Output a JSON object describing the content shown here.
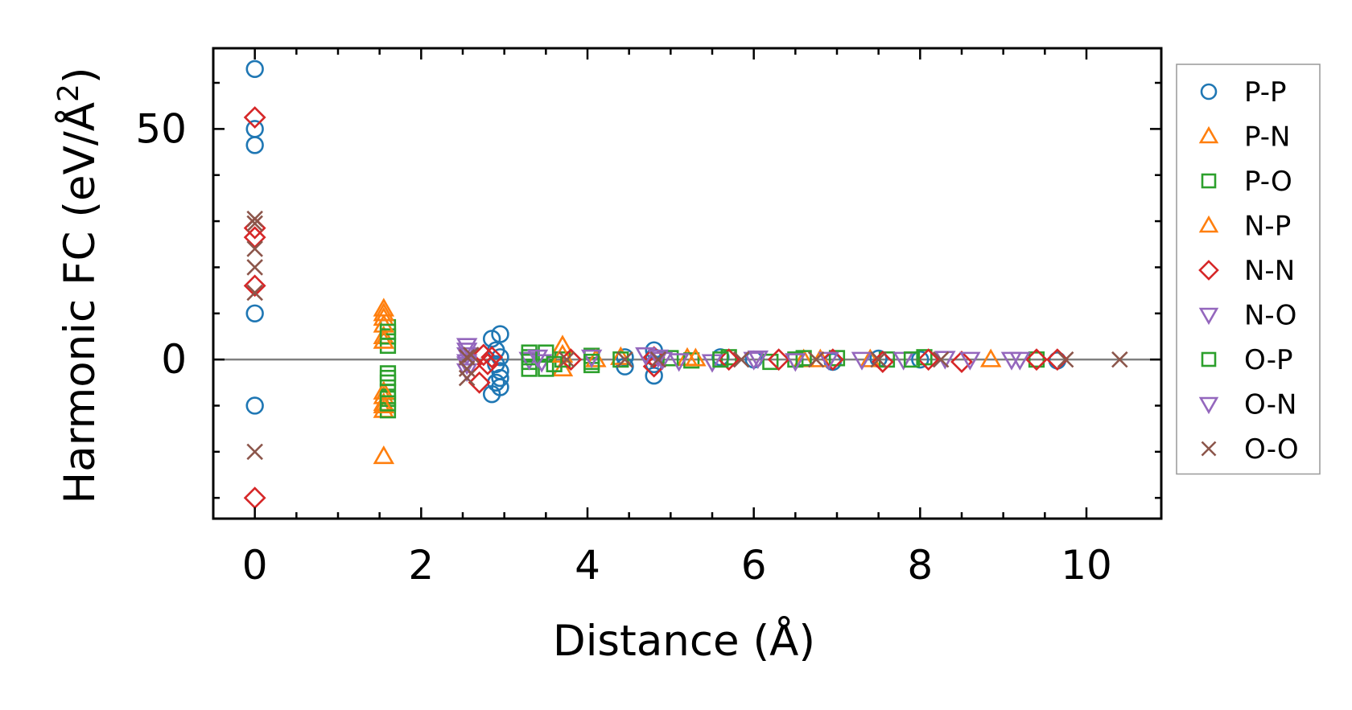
{
  "chart_data": {
    "type": "scatter",
    "title": "",
    "xlabel": "Distance (Å)",
    "ylabel_main": "Harmonic FC (eV/Å",
    "ylabel_sup": "2",
    "ylabel_close": ")",
    "xlim": [
      -0.5,
      10.9
    ],
    "ylim": [
      -34.5,
      67.5
    ],
    "xticks": [
      0,
      2,
      4,
      6,
      8,
      10
    ],
    "xtick_labels": [
      "0",
      "2",
      "4",
      "6",
      "8",
      "10"
    ],
    "yticks": [
      0,
      50
    ],
    "ytick_labels": [
      "0",
      "50"
    ],
    "zero_line": true,
    "grid": false,
    "legend_position": "outside right",
    "series": [
      {
        "name": "P-P",
        "marker": "circle",
        "color": "#1f77b4",
        "points": [
          [
            0,
            63
          ],
          [
            0,
            50
          ],
          [
            0,
            46.5
          ],
          [
            0,
            10
          ],
          [
            0,
            -10
          ],
          [
            2.85,
            4.5
          ],
          [
            2.95,
            5.5
          ],
          [
            2.9,
            2
          ],
          [
            2.95,
            0.5
          ],
          [
            2.9,
            -1
          ],
          [
            2.95,
            -2.5
          ],
          [
            2.95,
            -4
          ],
          [
            2.9,
            -5
          ],
          [
            2.85,
            -7.5
          ],
          [
            2.95,
            -6
          ],
          [
            4.8,
            2
          ],
          [
            4.8,
            0.5
          ],
          [
            4.8,
            -1
          ],
          [
            4.8,
            -3.5
          ],
          [
            4.45,
            0.5
          ],
          [
            4.45,
            -1.5
          ],
          [
            5.6,
            0.5
          ],
          [
            6.0,
            0
          ],
          [
            6.95,
            -0.5
          ],
          [
            7.5,
            0.2
          ],
          [
            8.0,
            0
          ],
          [
            9.65,
            -0.2
          ]
        ]
      },
      {
        "name": "P-N",
        "marker": "triangle-up",
        "color": "#ff7f0e",
        "points": [
          [
            1.55,
            11
          ],
          [
            1.55,
            9
          ],
          [
            1.55,
            5
          ],
          [
            1.55,
            -8
          ],
          [
            1.55,
            -9.5
          ],
          [
            1.55,
            -11
          ],
          [
            1.55,
            -21
          ],
          [
            3.7,
            3
          ],
          [
            3.7,
            -2
          ],
          [
            4.4,
            0.5
          ],
          [
            5.2,
            0.3
          ],
          [
            6.6,
            0
          ],
          [
            7.4,
            0
          ],
          [
            8.85,
            0
          ]
        ]
      },
      {
        "name": "P-O",
        "marker": "square",
        "color": "#2ca02c",
        "points": [
          [
            1.6,
            7
          ],
          [
            1.6,
            5
          ],
          [
            1.6,
            3
          ],
          [
            1.6,
            -3
          ],
          [
            1.6,
            -5
          ],
          [
            1.6,
            -7
          ],
          [
            1.6,
            -8.5
          ],
          [
            1.6,
            -11
          ],
          [
            3.3,
            1.5
          ],
          [
            3.3,
            -0.5
          ],
          [
            3.3,
            -2
          ],
          [
            3.5,
            1.5
          ],
          [
            3.5,
            -2
          ],
          [
            3.7,
            0
          ],
          [
            4.05,
            0.8
          ],
          [
            4.05,
            -1.2
          ],
          [
            4.4,
            0
          ],
          [
            5.0,
            0.3
          ],
          [
            5.25,
            -0.2
          ],
          [
            5.7,
            0.5
          ],
          [
            6.2,
            -0.5
          ],
          [
            6.5,
            0
          ],
          [
            7.0,
            0.3
          ],
          [
            7.6,
            0
          ],
          [
            8.05,
            0.5
          ],
          [
            9.4,
            0
          ]
        ]
      },
      {
        "name": "N-P",
        "marker": "triangle-up",
        "color": "#ff7f0e",
        "points": [
          [
            1.55,
            10
          ],
          [
            1.55,
            7.5
          ],
          [
            1.55,
            4
          ],
          [
            1.55,
            -7
          ],
          [
            1.55,
            -10
          ],
          [
            3.7,
            1
          ],
          [
            4.1,
            0
          ],
          [
            5.3,
            0.2
          ],
          [
            6.8,
            0
          ]
        ]
      },
      {
        "name": "N-N",
        "marker": "diamond",
        "color": "#d62728",
        "points": [
          [
            0,
            52.5
          ],
          [
            0,
            28.5
          ],
          [
            0,
            26.5
          ],
          [
            0,
            16
          ],
          [
            0,
            -30
          ],
          [
            2.6,
            -1
          ],
          [
            2.7,
            -5
          ],
          [
            2.75,
            1
          ],
          [
            2.8,
            -1
          ],
          [
            2.85,
            0.5
          ],
          [
            3.8,
            0
          ],
          [
            4.8,
            -1.5
          ],
          [
            4.8,
            0.5
          ],
          [
            5.7,
            0
          ],
          [
            6.3,
            0
          ],
          [
            6.95,
            0
          ],
          [
            7.55,
            -0.5
          ],
          [
            8.1,
            0
          ],
          [
            8.5,
            -0.5
          ],
          [
            9.4,
            0
          ],
          [
            9.65,
            0
          ]
        ]
      },
      {
        "name": "N-O",
        "marker": "triangle-down",
        "color": "#9467bd",
        "points": [
          [
            2.55,
            3
          ],
          [
            2.55,
            1
          ],
          [
            2.55,
            -1
          ],
          [
            2.55,
            -2.5
          ],
          [
            3.3,
            0
          ],
          [
            3.45,
            -0.5
          ],
          [
            4.05,
            0.5
          ],
          [
            4.7,
            1
          ],
          [
            4.85,
            0.5
          ],
          [
            5.5,
            -0.5
          ],
          [
            6.0,
            0
          ],
          [
            6.9,
            0
          ],
          [
            7.8,
            0
          ],
          [
            8.3,
            0.2
          ],
          [
            9.2,
            0
          ]
        ]
      },
      {
        "name": "O-P",
        "marker": "square",
        "color": "#2ca02c",
        "points": [
          [
            1.6,
            6
          ],
          [
            1.6,
            -4
          ],
          [
            1.6,
            -9.5
          ],
          [
            3.3,
            0.5
          ],
          [
            3.6,
            -1
          ],
          [
            4.05,
            -0.5
          ],
          [
            5.6,
            0
          ],
          [
            6.6,
            0.3
          ],
          [
            7.9,
            0
          ]
        ]
      },
      {
        "name": "O-N",
        "marker": "triangle-down",
        "color": "#9467bd",
        "points": [
          [
            2.55,
            2
          ],
          [
            2.55,
            -0.5
          ],
          [
            3.4,
            0.5
          ],
          [
            4.9,
            0
          ],
          [
            5.1,
            -0.3
          ],
          [
            6.05,
            0.3
          ],
          [
            6.5,
            -0.3
          ],
          [
            7.3,
            0
          ],
          [
            8.6,
            0
          ],
          [
            9.1,
            0
          ]
        ]
      },
      {
        "name": "O-O",
        "marker": "x",
        "color": "#8c564b",
        "points": [
          [
            0,
            30.5
          ],
          [
            0,
            29.5
          ],
          [
            0,
            24
          ],
          [
            0,
            20
          ],
          [
            0,
            14.5
          ],
          [
            0,
            -20
          ],
          [
            2.55,
            0.5
          ],
          [
            2.55,
            -2
          ],
          [
            2.55,
            -4
          ],
          [
            2.6,
            1
          ],
          [
            3.75,
            0
          ],
          [
            4.45,
            0
          ],
          [
            4.85,
            0
          ],
          [
            5.85,
            0
          ],
          [
            6.75,
            0
          ],
          [
            7.5,
            0
          ],
          [
            8.25,
            0
          ],
          [
            9.75,
            0
          ],
          [
            10.4,
            0
          ]
        ]
      }
    ]
  }
}
